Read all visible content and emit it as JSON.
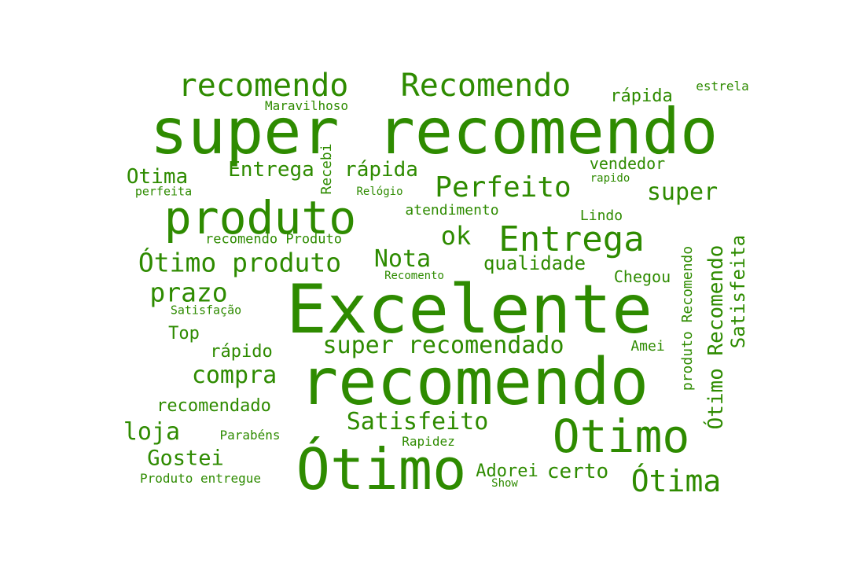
{
  "cloud": {
    "color": "#2e8b00",
    "words": [
      {
        "text": "super recomendo"
      },
      {
        "text": "Excelente"
      },
      {
        "text": "recomendo"
      },
      {
        "text": "Ótimo"
      },
      {
        "text": "produto"
      },
      {
        "text": "Otimo"
      },
      {
        "text": "recomendo"
      },
      {
        "text": "Recomendo"
      },
      {
        "text": "Entrega"
      },
      {
        "text": "Perfeito"
      },
      {
        "text": "Ótimo produto"
      },
      {
        "text": "super recomendado"
      },
      {
        "text": "Ótima"
      },
      {
        "text": "Entrega"
      },
      {
        "text": "rápida"
      },
      {
        "text": "Nota"
      },
      {
        "text": "ok"
      },
      {
        "text": "super"
      },
      {
        "text": "Satisfeito"
      },
      {
        "text": "compra"
      },
      {
        "text": "prazo"
      },
      {
        "text": "loja"
      },
      {
        "text": "Gostei"
      },
      {
        "text": "Otima"
      },
      {
        "text": "qualidade"
      },
      {
        "text": "certo"
      },
      {
        "text": "recomendado"
      },
      {
        "text": "rápida"
      },
      {
        "text": "Adorei"
      },
      {
        "text": "Top"
      },
      {
        "text": "Chegou"
      },
      {
        "text": "rápido"
      },
      {
        "text": "vendedor"
      },
      {
        "text": "Lindo"
      },
      {
        "text": "atendimento"
      },
      {
        "text": "Amei"
      },
      {
        "text": "recomendo Produto"
      },
      {
        "text": "Maravilhoso"
      },
      {
        "text": "Parabéns"
      },
      {
        "text": "Rapidez"
      },
      {
        "text": "Produto entregue"
      },
      {
        "text": "estrela"
      },
      {
        "text": "perfeita"
      },
      {
        "text": "Relógio"
      },
      {
        "text": "rapido"
      },
      {
        "text": "Satisfação"
      },
      {
        "text": "Recomento"
      },
      {
        "text": "Show"
      },
      {
        "text": "Ótimo Recomendo"
      },
      {
        "text": "Satisfeita"
      },
      {
        "text": "produto Recomendo"
      },
      {
        "text": "Recebi"
      }
    ]
  }
}
